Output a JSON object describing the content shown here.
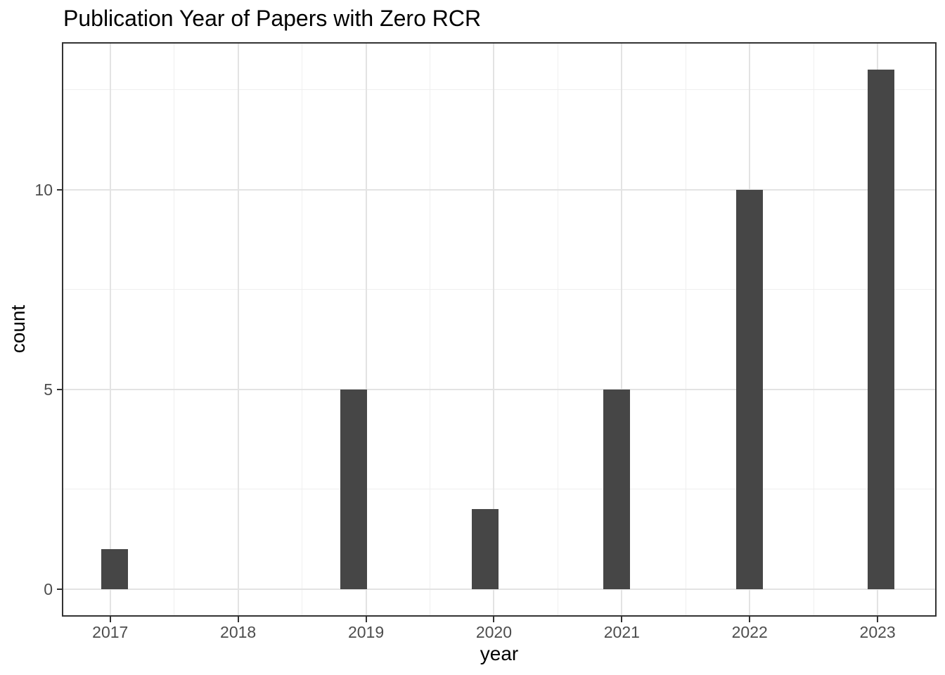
{
  "chart_data": {
    "type": "bar",
    "title": "Publication Year of Papers with Zero RCR",
    "xlabel": "year",
    "ylabel": "count",
    "categories": [
      2017,
      2018,
      2019,
      2020,
      2021,
      2022,
      2023
    ],
    "values": [
      1,
      0,
      5,
      2,
      5,
      10,
      13
    ],
    "x_tick_labels": [
      "2017",
      "2018",
      "2019",
      "2020",
      "2021",
      "2022",
      "2023"
    ],
    "y_tick_labels": [
      "0",
      "5",
      "10"
    ],
    "y_tick_values": [
      0,
      5,
      10
    ],
    "y_minor_values": [
      2.5,
      7.5,
      12.5
    ],
    "xlim": [
      2016.633,
      2023.45
    ],
    "ylim": [
      -0.65,
      13.65
    ],
    "grid": "major-and-minor",
    "legend_position": "none",
    "colors": {
      "bar_fill": "#464646",
      "grid_major": "#e3e3e3",
      "grid_minor": "#efefef",
      "panel_border": "#333333",
      "tick_label": "#4d4d4d",
      "axis_title": "#000000",
      "title": "#000000",
      "background": "#ffffff"
    }
  }
}
